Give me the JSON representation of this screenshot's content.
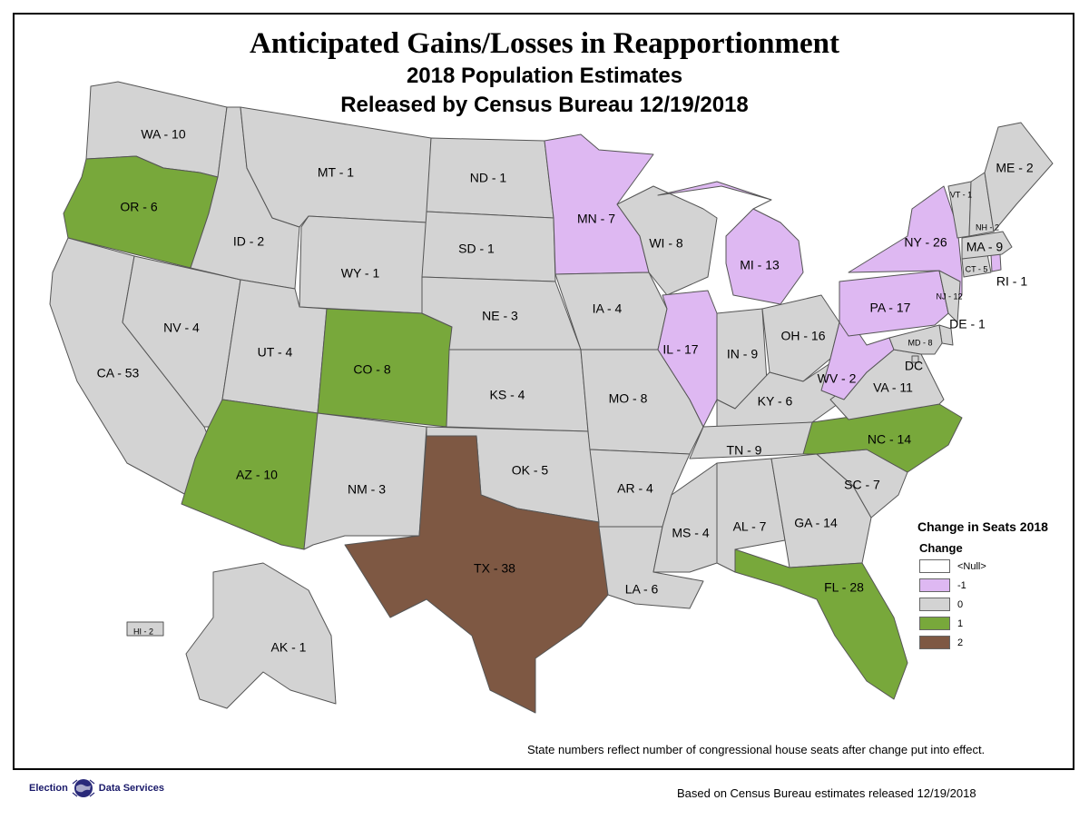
{
  "title": "Anticipated Gains/Losses in Reapportionment",
  "subtitle1": "2018 Population Estimates",
  "subtitle2": "Released by Census Bureau 12/19/2018",
  "note": "State numbers reflect number of congressional house seats after change put into effect.",
  "footer": "Based on Census Bureau estimates released 12/19/2018",
  "logo": {
    "word1": "Election",
    "word2": "Data Services"
  },
  "legend": {
    "title": "Change in Seats 2018",
    "subtitle": "Change",
    "items": [
      {
        "label": "<Null>",
        "color": "#ffffff"
      },
      {
        "label": "-1",
        "color": "#deb8f2"
      },
      {
        "label": "0",
        "color": "#d3d3d3"
      },
      {
        "label": "1",
        "color": "#78a83b"
      },
      {
        "label": "2",
        "color": "#7e5843"
      }
    ]
  },
  "colors": {
    "minus1": "#deb8f2",
    "zero": "#d3d3d3",
    "plus1": "#78a83b",
    "plus2": "#7e5843",
    "border": "#555555"
  },
  "states": [
    {
      "code": "WA",
      "label": "WA - 10",
      "change": 0
    },
    {
      "code": "OR",
      "label": "OR - 6",
      "change": 1
    },
    {
      "code": "CA",
      "label": "CA - 53",
      "change": 0
    },
    {
      "code": "NV",
      "label": "NV - 4",
      "change": 0
    },
    {
      "code": "ID",
      "label": "ID - 2",
      "change": 0
    },
    {
      "code": "MT",
      "label": "MT - 1",
      "change": 0
    },
    {
      "code": "WY",
      "label": "WY - 1",
      "change": 0
    },
    {
      "code": "UT",
      "label": "UT - 4",
      "change": 0
    },
    {
      "code": "AZ",
      "label": "AZ - 10",
      "change": 1
    },
    {
      "code": "CO",
      "label": "CO - 8",
      "change": 1
    },
    {
      "code": "NM",
      "label": "NM - 3",
      "change": 0
    },
    {
      "code": "ND",
      "label": "ND - 1",
      "change": 0
    },
    {
      "code": "SD",
      "label": "SD - 1",
      "change": 0
    },
    {
      "code": "NE",
      "label": "NE - 3",
      "change": 0
    },
    {
      "code": "KS",
      "label": "KS - 4",
      "change": 0
    },
    {
      "code": "OK",
      "label": "OK - 5",
      "change": 0
    },
    {
      "code": "TX",
      "label": "TX - 38",
      "change": 2
    },
    {
      "code": "MN",
      "label": "MN - 7",
      "change": -1
    },
    {
      "code": "IA",
      "label": "IA - 4",
      "change": 0
    },
    {
      "code": "MO",
      "label": "MO - 8",
      "change": 0
    },
    {
      "code": "AR",
      "label": "AR - 4",
      "change": 0
    },
    {
      "code": "LA",
      "label": "LA - 6",
      "change": 0
    },
    {
      "code": "WI",
      "label": "WI - 8",
      "change": 0
    },
    {
      "code": "IL",
      "label": "IL - 17",
      "change": -1
    },
    {
      "code": "MI",
      "label": "MI - 13",
      "change": -1
    },
    {
      "code": "IN",
      "label": "IN - 9",
      "change": 0
    },
    {
      "code": "OH",
      "label": "OH - 16",
      "change": 0
    },
    {
      "code": "KY",
      "label": "KY - 6",
      "change": 0
    },
    {
      "code": "TN",
      "label": "TN - 9",
      "change": 0
    },
    {
      "code": "MS",
      "label": "MS - 4",
      "change": 0
    },
    {
      "code": "AL",
      "label": "AL - 7",
      "change": 0
    },
    {
      "code": "GA",
      "label": "GA - 14",
      "change": 0
    },
    {
      "code": "FL",
      "label": "FL - 28",
      "change": 1
    },
    {
      "code": "SC",
      "label": "SC - 7",
      "change": 0
    },
    {
      "code": "NC",
      "label": "NC - 14",
      "change": 1
    },
    {
      "code": "VA",
      "label": "VA - 11",
      "change": 0
    },
    {
      "code": "WV",
      "label": "WV - 2",
      "change": -1
    },
    {
      "code": "PA",
      "label": "PA - 17",
      "change": -1
    },
    {
      "code": "NY",
      "label": "NY - 26",
      "change": -1
    },
    {
      "code": "NJ",
      "label": "NJ - 12",
      "change": 0
    },
    {
      "code": "DE",
      "label": "DE - 1",
      "change": 0
    },
    {
      "code": "MD",
      "label": "MD - 8",
      "change": 0
    },
    {
      "code": "DC",
      "label": "DC",
      "change": 0
    },
    {
      "code": "CT",
      "label": "CT - 5",
      "change": 0
    },
    {
      "code": "RI",
      "label": "RI - 1",
      "change": -1
    },
    {
      "code": "MA",
      "label": "MA - 9",
      "change": 0
    },
    {
      "code": "VT",
      "label": "VT - 1",
      "change": 0
    },
    {
      "code": "NH",
      "label": "NH - 2",
      "change": 0
    },
    {
      "code": "ME",
      "label": "ME - 2",
      "change": 0
    },
    {
      "code": "AK",
      "label": "AK - 1",
      "change": 0
    },
    {
      "code": "HI",
      "label": "HI - 2",
      "change": 0
    }
  ]
}
